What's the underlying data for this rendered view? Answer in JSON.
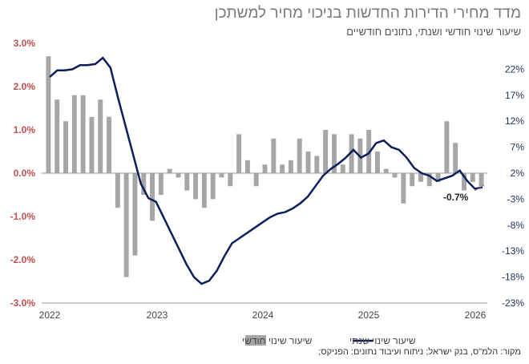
{
  "title": "מדד מחירי הדירות החדשות בניכוי מחיר למשתכן",
  "subtitle": "שיעור שינוי חודשי ושנתי, נתונים חודשיים",
  "source": "מקור: הלמ\"ס, בנק ישראל; ניתוח ועיבוד נתונים: הפניקס;",
  "colors": {
    "bars": "#a6a6a6",
    "line": "#0c1e5b",
    "left_axis": "#c0504d",
    "right_axis": "#1f2d5c"
  },
  "chart_data": {
    "type": "bar",
    "title": "מדד מחירי הדירות החדשות בניכוי מחיר למשתכן",
    "subtitle": "שיעור שינוי חודשי ושנתי, נתונים חודשיים",
    "x_ticks": [
      "2022",
      "2023",
      "2024",
      "2025",
      "2026"
    ],
    "left_axis": {
      "ylim": [
        -3.0,
        3.0
      ],
      "ticks": [
        "3.0%",
        "2.0%",
        "1.0%",
        "0.0%",
        "-1.0%",
        "-2.0%",
        "-3.0%"
      ]
    },
    "right_axis": {
      "ylim": [
        -23,
        27
      ],
      "ticks": [
        "22%",
        "17%",
        "12%",
        "7%",
        "2%",
        "-3%",
        "-8%",
        "-13%",
        "-18%",
        "-23%"
      ]
    },
    "legend": [
      "שיעור שינוי שנתי",
      "שיעור שינוי חודשי"
    ],
    "grid": false,
    "series": [
      {
        "name": "שיעור שינוי חודשי",
        "type": "bar",
        "axis": "left",
        "values": [
          2.7,
          1.7,
          1.2,
          1.8,
          1.8,
          1.3,
          1.7,
          1.3,
          -0.8,
          -2.4,
          -1.9,
          -0.5,
          -1.1,
          -0.5,
          0.1,
          -0.1,
          -0.4,
          -0.6,
          -0.8,
          -0.6,
          -0.1,
          -0.3,
          0.9,
          0.3,
          -0.3,
          0.2,
          0.8,
          0.2,
          0.3,
          0.8,
          0.5,
          0.4,
          1.0,
          0.9,
          0.2,
          0.9,
          0.8,
          1.0,
          0.5,
          0.1,
          -0.1,
          -0.7,
          -0.3,
          -0.2,
          -0.3,
          -0.2,
          1.2,
          0.7,
          -0.4,
          -0.2,
          -0.3
        ]
      },
      {
        "name": "שיעור שינוי שנתי",
        "type": "line",
        "axis": "right",
        "values": [
          20.5,
          21.8,
          21.8,
          22.0,
          22.8,
          22.8,
          23.0,
          24.2,
          22.3,
          16.5,
          11.0,
          5.5,
          0.0,
          -2.8,
          -3.5,
          -6.5,
          -9.5,
          -12.5,
          -15.5,
          -18.0,
          -19.3,
          -18.7,
          -16.8,
          -14.0,
          -11.5,
          -10.5,
          -9.5,
          -8.5,
          -7.5,
          -6.5,
          -5.8,
          -5.5,
          -4.8,
          -3.8,
          -2.5,
          -0.5,
          1.5,
          2.8,
          3.8,
          5.0,
          6.5,
          5.0,
          5.8,
          7.8,
          8.3,
          7.0,
          6.5,
          5.0,
          3.0,
          2.0,
          1.5,
          0.5,
          1.0,
          1.5,
          2.5,
          0.5,
          -1.0,
          -0.7
        ]
      }
    ],
    "annotations": [
      "-0.7%"
    ]
  }
}
